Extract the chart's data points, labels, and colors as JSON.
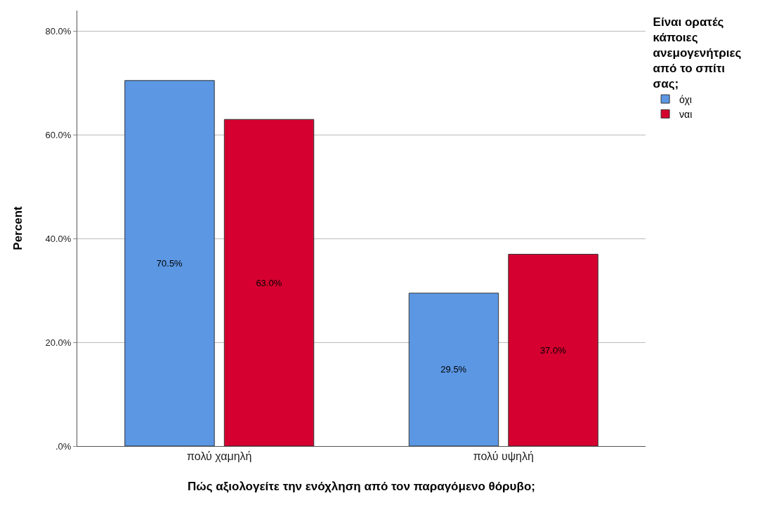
{
  "chart_data": {
    "type": "bar",
    "xlabel": "Πώς αξιολογείτε την ενόχληση από τον παραγόμενο θόρυβο;",
    "ylabel": "Percent",
    "legend_title": "Είναι ορατές κάποιες ανεμογενήτριες από το σπίτι σας;",
    "categories": [
      "πολύ χαμηλή",
      "πολύ υψηλή"
    ],
    "series": [
      {
        "name": "όχι",
        "color": "#5b97e3",
        "values": [
          70.5,
          29.5
        ],
        "value_labels": [
          "70.5%",
          "29.5%"
        ]
      },
      {
        "name": "ναι",
        "color": "#d5002f",
        "values": [
          63.0,
          37.0
        ],
        "value_labels": [
          "63.0%",
          "37.0%"
        ]
      }
    ],
    "ylim": [
      0,
      84
    ],
    "yticks": [
      {
        "value": 0,
        "label": ".0%"
      },
      {
        "value": 20,
        "label": "20.0%"
      },
      {
        "value": 40,
        "label": "40.0%"
      },
      {
        "value": 60,
        "label": "60.0%"
      },
      {
        "value": 80,
        "label": "80.0%"
      }
    ],
    "grid": "y",
    "legend": "top right"
  }
}
